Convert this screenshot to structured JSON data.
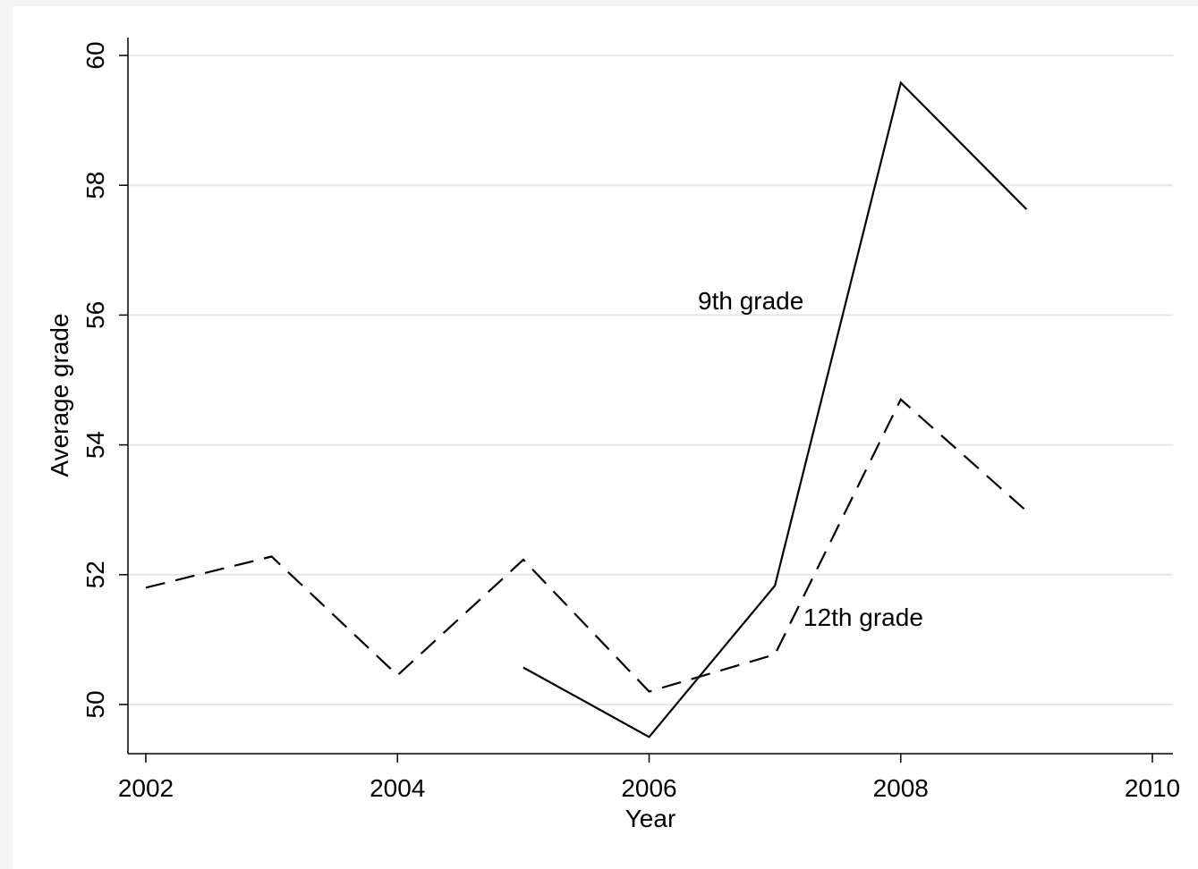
{
  "chart_data": {
    "type": "line",
    "title": "",
    "xlabel": "Year",
    "ylabel": "Average grade",
    "xlim": [
      2002,
      2010
    ],
    "ylim": [
      50,
      60
    ],
    "xticks": [
      2002,
      2004,
      2006,
      2008,
      2010
    ],
    "yticks": [
      50,
      52,
      54,
      56,
      58,
      60
    ],
    "grid": true,
    "legend": "none",
    "series": [
      {
        "name": "9th grade",
        "style": "solid",
        "color": "#000000",
        "x": [
          2005,
          2006,
          2007,
          2008,
          2009
        ],
        "y": [
          50.57,
          49.5,
          51.83,
          59.58,
          57.63
        ]
      },
      {
        "name": "12th grade",
        "style": "dashed",
        "color": "#000000",
        "x": [
          2002,
          2003,
          2004,
          2005,
          2006,
          2007,
          2008,
          2009
        ],
        "y": [
          51.8,
          52.28,
          50.45,
          52.23,
          50.2,
          50.77,
          54.7,
          52.98
        ]
      }
    ],
    "annotations": [
      {
        "text": "9th grade",
        "series": "9th grade"
      },
      {
        "text": "12th grade",
        "series": "12th grade"
      }
    ]
  },
  "colors": {
    "grid": "#e6e6e6",
    "axis": "#000000",
    "frame": "#f4f4f4"
  }
}
